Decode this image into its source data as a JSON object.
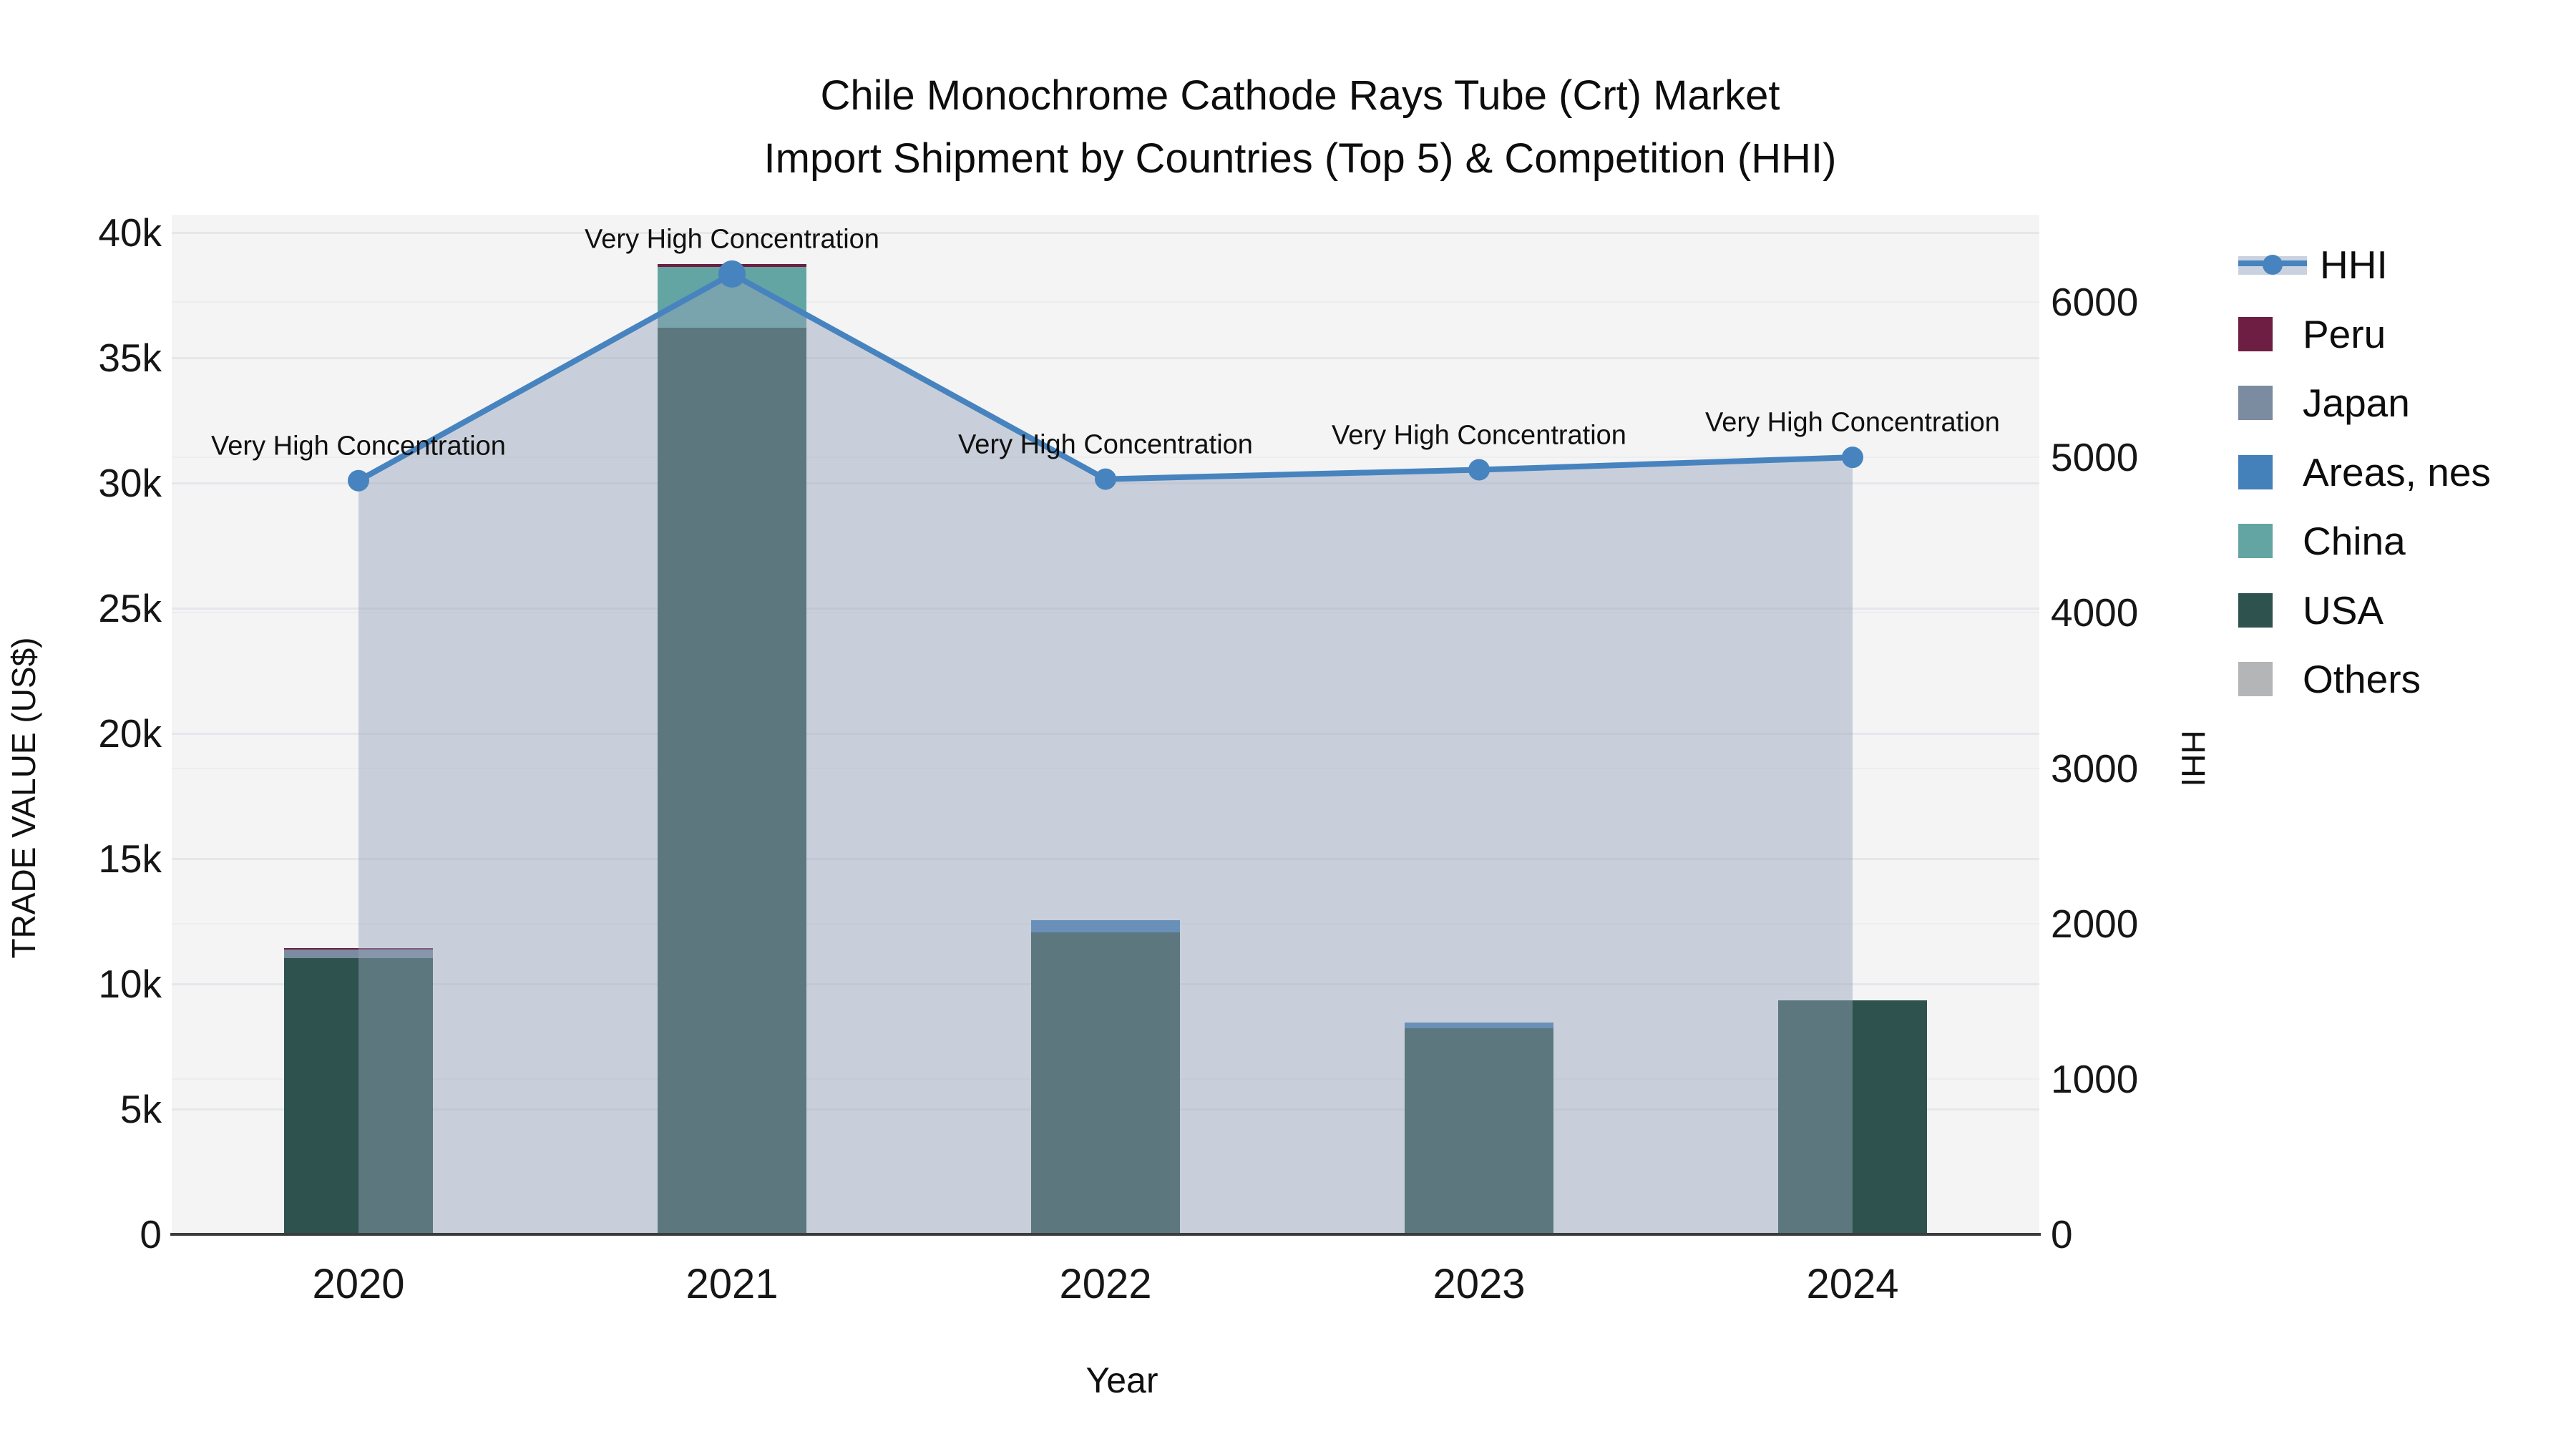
{
  "title": {
    "line1": "Chile Monochrome Cathode Rays Tube (Crt) Market",
    "line2": "Import Shipment by Countries (Top 5) & Competition (HHI)"
  },
  "axes": {
    "x": {
      "label": "Year"
    },
    "y_left": {
      "label": "TRADE VALUE (US$)",
      "tick_labels": [
        "0",
        "5k",
        "10k",
        "15k",
        "20k",
        "25k",
        "30k",
        "35k",
        "40k"
      ],
      "tick_values": [
        0,
        5000,
        10000,
        15000,
        20000,
        25000,
        30000,
        35000,
        40000
      ]
    },
    "y_right": {
      "label": "HHI",
      "tick_labels": [
        "0",
        "1000",
        "2000",
        "3000",
        "4000",
        "5000",
        "6000"
      ],
      "tick_values": [
        0,
        1000,
        2000,
        3000,
        4000,
        5000,
        6000
      ]
    }
  },
  "legend": [
    {
      "label": "HHI",
      "kind": "line",
      "color": "#4784bf"
    },
    {
      "label": "Peru",
      "kind": "swatch",
      "color": "#6e1e42"
    },
    {
      "label": "Japan",
      "kind": "swatch",
      "color": "#7b8ba0"
    },
    {
      "label": "Areas, nes",
      "kind": "swatch",
      "color": "#4480b9"
    },
    {
      "label": "China",
      "kind": "swatch",
      "color": "#63a5a3"
    },
    {
      "label": "USA",
      "kind": "swatch",
      "color": "#2e524e"
    },
    {
      "label": "Others",
      "kind": "swatch",
      "color": "#b3b5b6"
    }
  ],
  "chart_data": {
    "type": "bar",
    "subtype": "stacked-bars-with-line",
    "title": "Chile Monochrome Cathode Rays Tube (Crt) Market Import Shipment by Countries (Top 5) & Competition (HHI)",
    "xlabel": "Year",
    "ylabel_left": "TRADE VALUE (US$)",
    "ylabel_right": "HHI",
    "ylim_left": [
      0,
      40000
    ],
    "ylim_right": [
      0,
      6000
    ],
    "grid": true,
    "legend_position": "right",
    "categories": [
      "2020",
      "2021",
      "2022",
      "2023",
      "2024"
    ],
    "stack_order_bottom_to_top": [
      "USA",
      "China",
      "Areas, nes",
      "Japan",
      "Peru",
      "Others"
    ],
    "series": [
      {
        "name": "Peru",
        "color": "#6e1e42",
        "values": [
          60,
          90,
          0,
          0,
          0
        ]
      },
      {
        "name": "Japan",
        "color": "#7b8ba0",
        "values": [
          340,
          0,
          0,
          0,
          0
        ]
      },
      {
        "name": "Areas, nes",
        "color": "#4480b9",
        "values": [
          0,
          0,
          490,
          230,
          0
        ]
      },
      {
        "name": "China",
        "color": "#63a5a3",
        "values": [
          0,
          2430,
          0,
          0,
          0
        ]
      },
      {
        "name": "USA",
        "color": "#2e524e",
        "values": [
          11030,
          36210,
          12060,
          8230,
          9340
        ]
      },
      {
        "name": "Others",
        "color": "#b3b5b6",
        "values": [
          0,
          0,
          0,
          0,
          0
        ]
      }
    ],
    "line_series": {
      "name": "HHI",
      "axis": "right",
      "color": "#4784bf",
      "area_fill": "rgba(151,163,186,0.46)",
      "values": [
        4850,
        6180,
        4860,
        4920,
        5000
      ],
      "annotations": [
        "Very High Concentration",
        "Very High Concentration",
        "Very High Concentration",
        "Very High Concentration",
        "Very High Concentration"
      ]
    }
  }
}
